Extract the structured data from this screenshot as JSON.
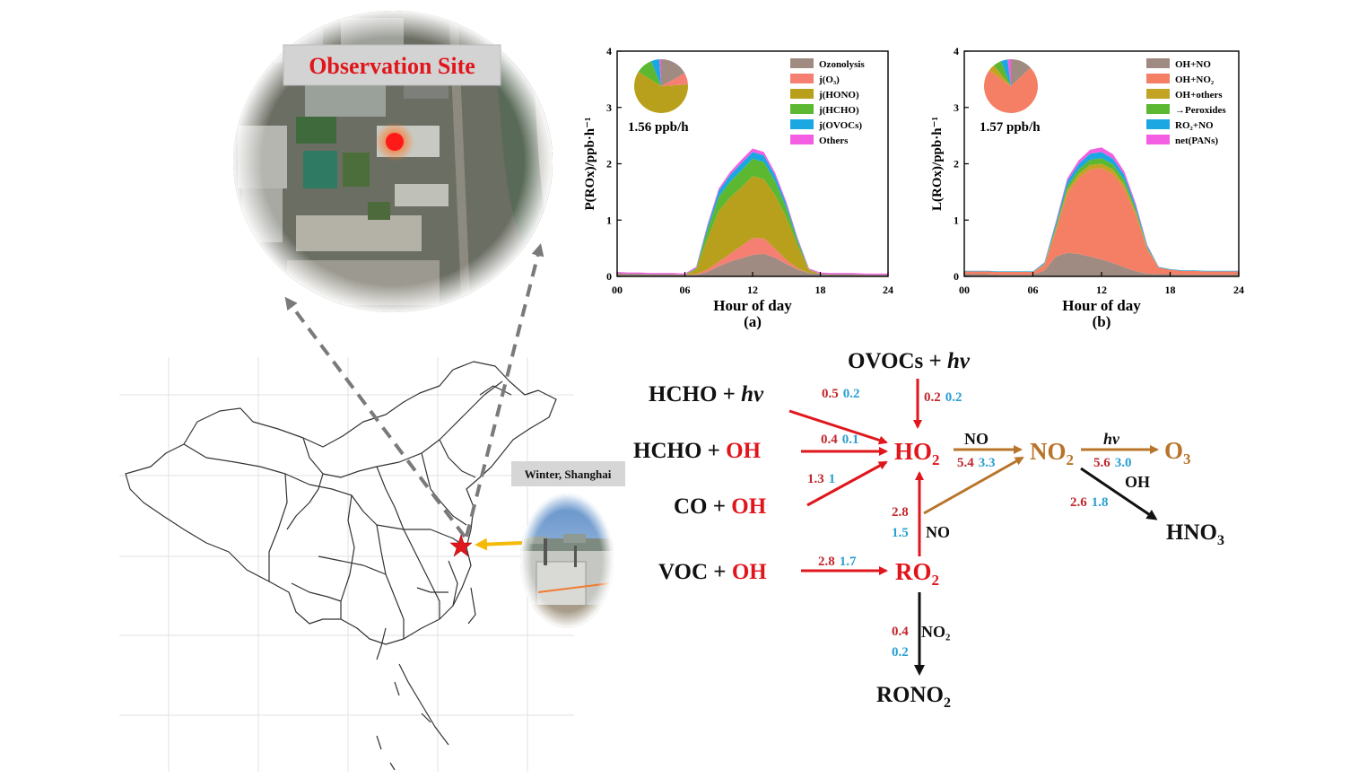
{
  "site": {
    "label": "Observation Site",
    "location_label": "Winter, Shanghai"
  },
  "colors": {
    "red": "#e0161c",
    "blue": "#2a9fd0",
    "brown": "#b86e1e",
    "black": "#111111",
    "arrow_red": "#e0161c",
    "arrow_brown": "#b8742a",
    "arrow_yellow": "#f5b90a",
    "dash_gray": "#7a7a7a"
  },
  "chart_data": [
    {
      "id": "a",
      "type": "area",
      "panel_label": "(a)",
      "xlabel": "Hour of day",
      "ylabel": "P(ROx)/ppb·h⁻¹",
      "xlim": [
        0,
        24
      ],
      "ylim": [
        0,
        4
      ],
      "xticks": [
        "00",
        "06",
        "12",
        "18",
        "24"
      ],
      "yticks": [
        "0",
        "1",
        "2",
        "3",
        "4"
      ],
      "total_label": "1.56 ppb/h",
      "legend_position": "top-right",
      "x": [
        0,
        1,
        2,
        3,
        4,
        5,
        6,
        7,
        8,
        9,
        10,
        11,
        12,
        13,
        14,
        15,
        16,
        17,
        18,
        19,
        20,
        21,
        22,
        23,
        24
      ],
      "series": [
        {
          "name": "Ozonolysis",
          "color": "#a08b82",
          "values": [
            0.06,
            0.05,
            0.05,
            0.04,
            0.04,
            0.04,
            0.03,
            0.03,
            0.08,
            0.18,
            0.26,
            0.32,
            0.38,
            0.4,
            0.33,
            0.22,
            0.12,
            0.06,
            0.05,
            0.04,
            0.04,
            0.04,
            0.03,
            0.03,
            0.03
          ]
        },
        {
          "name": "j(O₃)",
          "color": "#f47f72",
          "values": [
            0,
            0,
            0,
            0,
            0,
            0,
            0,
            0.01,
            0.04,
            0.08,
            0.14,
            0.22,
            0.3,
            0.28,
            0.16,
            0.07,
            0.02,
            0,
            0,
            0,
            0,
            0,
            0,
            0,
            0
          ]
        },
        {
          "name": "j(HONO)",
          "color": "#b9a01c",
          "values": [
            0,
            0,
            0,
            0,
            0,
            0,
            0,
            0.08,
            0.55,
            0.9,
            1.0,
            1.04,
            1.1,
            1.05,
            0.95,
            0.75,
            0.4,
            0.05,
            0,
            0,
            0,
            0,
            0,
            0,
            0
          ]
        },
        {
          "name": "j(HCHO)",
          "color": "#5cb831",
          "values": [
            0,
            0,
            0,
            0,
            0,
            0,
            0,
            0.02,
            0.15,
            0.25,
            0.28,
            0.3,
            0.31,
            0.3,
            0.25,
            0.17,
            0.08,
            0.01,
            0,
            0,
            0,
            0,
            0,
            0,
            0
          ]
        },
        {
          "name": "j(OVOCs)",
          "color": "#1ba7e2",
          "values": [
            0,
            0,
            0,
            0,
            0,
            0,
            0,
            0.01,
            0.07,
            0.11,
            0.12,
            0.13,
            0.12,
            0.12,
            0.1,
            0.07,
            0.03,
            0,
            0,
            0,
            0,
            0,
            0,
            0,
            0
          ]
        },
        {
          "name": "Others",
          "color": "#f45ee3",
          "values": [
            0.02,
            0.02,
            0.02,
            0.02,
            0.02,
            0.02,
            0.02,
            0.02,
            0.03,
            0.04,
            0.05,
            0.06,
            0.06,
            0.06,
            0.05,
            0.04,
            0.03,
            0.02,
            0.02,
            0.02,
            0.02,
            0.02,
            0.02,
            0.02,
            0.02
          ]
        }
      ],
      "pie": [
        {
          "name": "Ozonolysis",
          "value": 0.17
        },
        {
          "name": "j(O₃)",
          "value": 0.07
        },
        {
          "name": "j(HONO)",
          "value": 0.6
        },
        {
          "name": "j(HCHO)",
          "value": 0.1
        },
        {
          "name": "j(OVOCs)",
          "value": 0.05
        },
        {
          "name": "Others",
          "value": 0.01
        }
      ]
    },
    {
      "id": "b",
      "type": "area",
      "panel_label": "(b)",
      "xlabel": "Hour of day",
      "ylabel": "L(ROx)/ppb·h⁻¹",
      "xlim": [
        0,
        24
      ],
      "ylim": [
        0,
        4
      ],
      "xticks": [
        "00",
        "06",
        "12",
        "18",
        "24"
      ],
      "yticks": [
        "0",
        "1",
        "2",
        "3",
        "4"
      ],
      "total_label": "1.57 ppb/h",
      "legend_position": "top-right",
      "x": [
        0,
        1,
        2,
        3,
        4,
        5,
        6,
        7,
        8,
        9,
        10,
        11,
        12,
        13,
        14,
        15,
        16,
        17,
        18,
        19,
        20,
        21,
        22,
        23,
        24
      ],
      "series": [
        {
          "name": "OH+NO",
          "color": "#a08b82",
          "values": [
            0.04,
            0.04,
            0.04,
            0.03,
            0.03,
            0.03,
            0.03,
            0.1,
            0.35,
            0.42,
            0.4,
            0.35,
            0.3,
            0.24,
            0.16,
            0.09,
            0.05,
            0.04,
            0.04,
            0.03,
            0.03,
            0.03,
            0.03,
            0.03,
            0.03
          ]
        },
        {
          "name": "OH+NO₂",
          "color": "#f47f64",
          "values": [
            0.05,
            0.05,
            0.05,
            0.05,
            0.05,
            0.05,
            0.05,
            0.1,
            0.45,
            1.05,
            1.35,
            1.55,
            1.62,
            1.58,
            1.4,
            1.0,
            0.42,
            0.12,
            0.08,
            0.07,
            0.07,
            0.06,
            0.06,
            0.06,
            0.06
          ]
        },
        {
          "name": "OH+others",
          "color": "#c3a323",
          "values": [
            0,
            0,
            0,
            0,
            0,
            0,
            0,
            0.01,
            0.04,
            0.06,
            0.07,
            0.08,
            0.08,
            0.08,
            0.07,
            0.05,
            0.02,
            0,
            0,
            0,
            0,
            0,
            0,
            0,
            0
          ]
        },
        {
          "name": "→Peroxides",
          "color": "#5cb831",
          "values": [
            0,
            0,
            0,
            0,
            0,
            0,
            0,
            0.01,
            0.04,
            0.07,
            0.08,
            0.09,
            0.1,
            0.09,
            0.08,
            0.05,
            0.02,
            0,
            0,
            0,
            0,
            0,
            0,
            0,
            0
          ]
        },
        {
          "name": "RO₂+NO",
          "color": "#1ba7e2",
          "values": [
            0.01,
            0.01,
            0.01,
            0.01,
            0.01,
            0.01,
            0.01,
            0.02,
            0.06,
            0.09,
            0.1,
            0.11,
            0.11,
            0.1,
            0.09,
            0.06,
            0.03,
            0.01,
            0.01,
            0.01,
            0.01,
            0.01,
            0.01,
            0.01,
            0.01
          ]
        },
        {
          "name": "net(PANs)",
          "color": "#f45ee3",
          "values": [
            0,
            0,
            0,
            0,
            0,
            0,
            0,
            0.01,
            0.03,
            0.05,
            0.06,
            0.07,
            0.08,
            0.08,
            0.06,
            0.04,
            0.02,
            0,
            0,
            0,
            0,
            0,
            0,
            0,
            0
          ]
        }
      ],
      "pie": [
        {
          "name": "OH+NO",
          "value": 0.13
        },
        {
          "name": "OH+NO₂",
          "value": 0.72
        },
        {
          "name": "OH+others",
          "value": 0.04
        },
        {
          "name": "→Peroxides",
          "value": 0.05
        },
        {
          "name": "RO₂+NO",
          "value": 0.04
        },
        {
          "name": "net(PANs)",
          "value": 0.02
        }
      ]
    }
  ],
  "mechanism": {
    "species": {
      "ovocs_hv": {
        "main": "OVOCs + ",
        "hv": "hv"
      },
      "hcho_hv": {
        "main": "HCHO + ",
        "hv": "hv"
      },
      "hcho_oh": {
        "main": "HCHO + ",
        "oh": "OH"
      },
      "co_oh": {
        "main": "CO + ",
        "oh": "OH"
      },
      "voc_oh": {
        "main": "VOC + ",
        "oh": "OH"
      },
      "ho2": {
        "main": "HO",
        "sub": "2"
      },
      "no2": {
        "main": "NO",
        "sub": "2"
      },
      "o3": {
        "main": "O",
        "sub": "3"
      },
      "hno3": {
        "main": "HNO",
        "sub": "3"
      },
      "ro2": {
        "main": "RO",
        "sub": "2"
      },
      "rono2": {
        "main": "RONO",
        "sub": "2"
      }
    },
    "rates": {
      "hcho_hv": {
        "red": "0.5",
        "blue": "0.2"
      },
      "ovocs_hv": {
        "red": "0.2",
        "blue": "0.2"
      },
      "hcho_oh": {
        "red": "0.4",
        "blue": "0.1"
      },
      "co_oh": {
        "red": "1.3",
        "blue": "1"
      },
      "ho2_no": {
        "red": "5.4",
        "blue": "3.3"
      },
      "no2_hv": {
        "red": "5.6",
        "blue": "3.0"
      },
      "no2_oh": {
        "red": "2.6",
        "blue": "1.8"
      },
      "ro2_no": {
        "red": "2.8",
        "blue": "1.5"
      },
      "voc_oh": {
        "red": "2.8",
        "blue": "1.7"
      },
      "ro2_no2": {
        "red": "0.4",
        "blue": "0.2"
      }
    },
    "labels": {
      "no_top": "NO",
      "hv_right": "hv",
      "oh_right": "OH",
      "no_mid": "NO",
      "no2_bottom": "NO₂"
    }
  }
}
